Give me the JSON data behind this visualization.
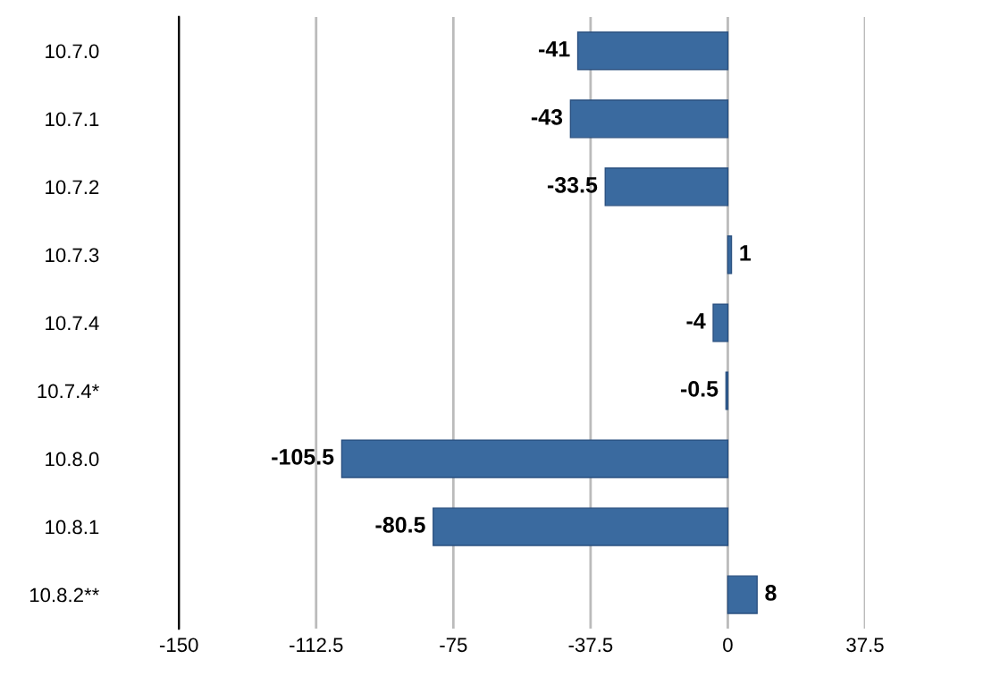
{
  "chart_data": {
    "type": "bar",
    "orientation": "horizontal",
    "categories": [
      "10.7.0",
      "10.7.1",
      "10.7.2",
      "10.7.3",
      "10.7.4",
      "10.7.4*",
      "10.8.0",
      "10.8.1",
      "10.8.2**"
    ],
    "values": [
      -41,
      -43,
      -33.5,
      1,
      -4,
      -0.5,
      -105.5,
      -80.5,
      8
    ],
    "color": "#3a6a9f",
    "xlim": [
      -150,
      37.5
    ],
    "xticks": [
      -150,
      -112.5,
      -75,
      -37.5,
      0,
      37.5
    ],
    "grid": "x",
    "data_labels": true
  }
}
